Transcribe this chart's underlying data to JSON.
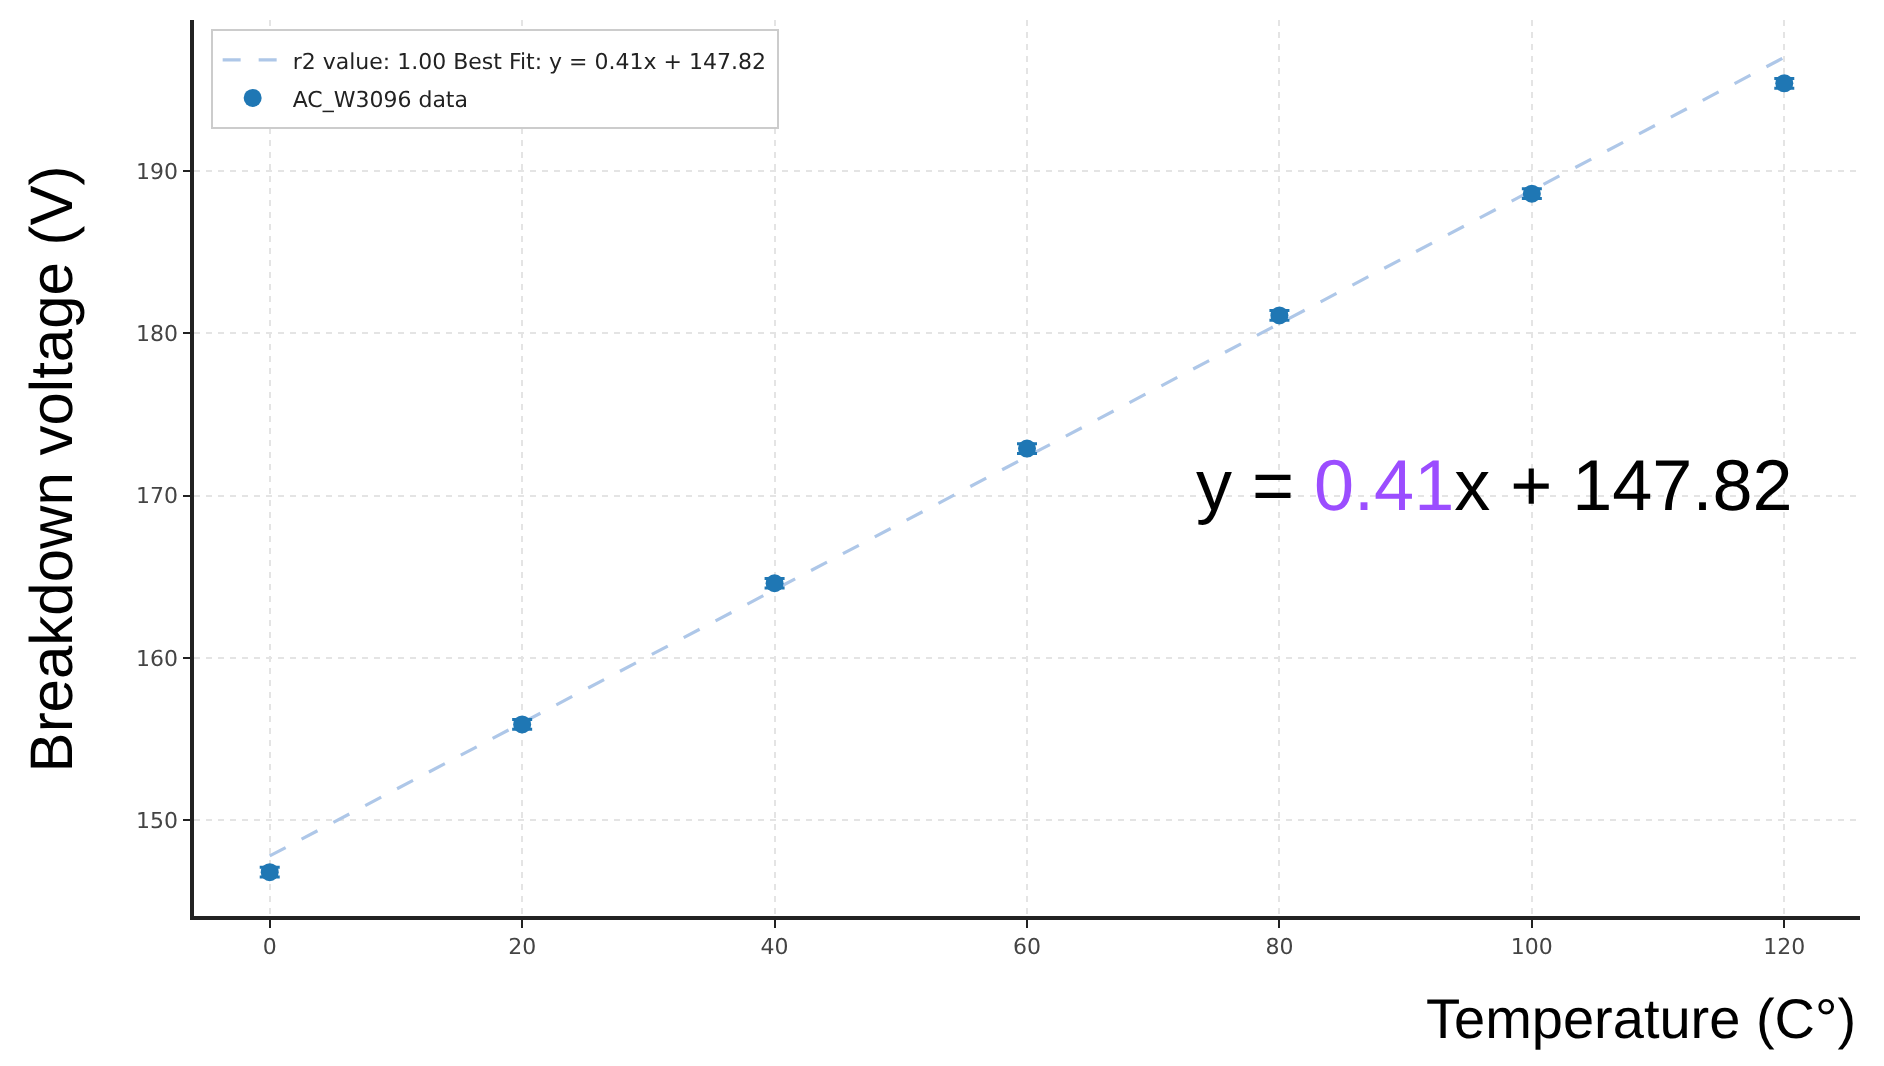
{
  "chart_data": {
    "type": "scatter",
    "xlabel": "Temperature (C°)",
    "ylabel": "Breakdown voltage (V)",
    "x": [
      0,
      20,
      40,
      60,
      80,
      100,
      120
    ],
    "series": [
      {
        "name": "r2 value: 1.00 Best Fit: y = 0.41x + 147.82",
        "type": "line",
        "color": "#aec7e8",
        "line_style": "dashed",
        "marker": "none",
        "x": [
          0,
          120
        ],
        "values": [
          147.8,
          197.0
        ]
      },
      {
        "name": "AC_W3096 data",
        "color": "#1f77b4",
        "marker": "circle",
        "values": [
          146.8,
          155.9,
          164.6,
          172.9,
          181.1,
          188.6,
          195.4
        ],
        "errors": [
          0.3,
          0.3,
          0.3,
          0.3,
          0.3,
          0.3,
          0.3
        ]
      }
    ],
    "xlim": [
      -6,
      126
    ],
    "xticks": [
      0,
      20,
      40,
      60,
      80,
      100,
      120
    ],
    "ylim": [
      144.1,
      199.3
    ],
    "yticks": [
      150,
      160,
      170,
      180,
      190
    ],
    "grid": true,
    "legend": "top left",
    "annotations": [
      "y = 0.41x + 147.82"
    ]
  }
}
